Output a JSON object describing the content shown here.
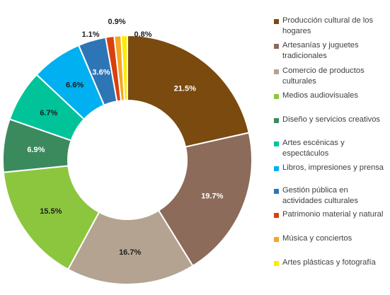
{
  "chart_data": {
    "type": "pie",
    "donut": true,
    "legend_position": "right",
    "slices": [
      {
        "label": "Producción cultural de los hogares",
        "value": 21.5,
        "value_label": "21.5%",
        "color": "#7a4a0f",
        "label_color": "#ffffff"
      },
      {
        "label": "Artesanías y juguetes tradicionales",
        "value": 19.7,
        "value_label": "19.7%",
        "color": "#8c6b5a",
        "label_color": "#ffffff"
      },
      {
        "label": "Comercio de productos culturales",
        "value": 16.7,
        "value_label": "16.7%",
        "color": "#b5a392",
        "label_color": "#1f1f1f"
      },
      {
        "label": "Medios audiovisuales",
        "value": 15.5,
        "value_label": "15.5%",
        "color": "#8cc63f",
        "label_color": "#1f1f1f"
      },
      {
        "label": "Diseño y servicios creativos",
        "value": 6.9,
        "value_label": "6.9%",
        "color": "#3a8a5e",
        "label_color": "#ffffff"
      },
      {
        "label": "Artes escénicas y espectáculos",
        "value": 6.7,
        "value_label": "6.7%",
        "color": "#00c39a",
        "label_color": "#1f1f1f"
      },
      {
        "label": "Libros, impresiones y prensa",
        "value": 6.6,
        "value_label": "6.6%",
        "color": "#00b0f0",
        "label_color": "#1f1f1f"
      },
      {
        "label": "Gestión pública en actividades culturales",
        "value": 3.6,
        "value_label": "3.6%",
        "color": "#2e75b6",
        "label_color": "#ffffff"
      },
      {
        "label": "Patrimonio material y natural",
        "value": 1.1,
        "value_label": "1.1%",
        "color": "#d9400e",
        "label_color": "#1f1f1f"
      },
      {
        "label": "Música y conciertos",
        "value": 0.9,
        "value_label": "0.9%",
        "color": "#f5a623",
        "label_color": "#1f1f1f"
      },
      {
        "label": "Artes plásticas y fotografía",
        "value": 0.8,
        "value_label": "0.8%",
        "color": "#ffea00",
        "label_color": "#1f1f1f"
      }
    ]
  },
  "legend": {
    "items": [
      {
        "lines": [
          "Producción cultural de los",
          "hogares"
        ]
      },
      {
        "lines": [
          "Artesanías y juguetes",
          "tradicionales"
        ]
      },
      {
        "lines": [
          "Comercio de productos",
          "culturales"
        ]
      },
      {
        "lines": [
          "Medios audiovisuales"
        ]
      },
      {
        "lines": [
          "Diseño y servicios creativos"
        ]
      },
      {
        "lines": [
          "Artes escénicas y",
          "espectáculos"
        ]
      },
      {
        "lines": [
          "Libros, impresiones y prensa"
        ]
      },
      {
        "lines": [
          "Gestión pública en",
          "actividades culturales"
        ]
      },
      {
        "lines": [
          "Patrimonio material y natural"
        ]
      },
      {
        "lines": [
          "Música y conciertos"
        ]
      },
      {
        "lines": [
          "Artes plásticas y fotografía"
        ]
      }
    ]
  }
}
